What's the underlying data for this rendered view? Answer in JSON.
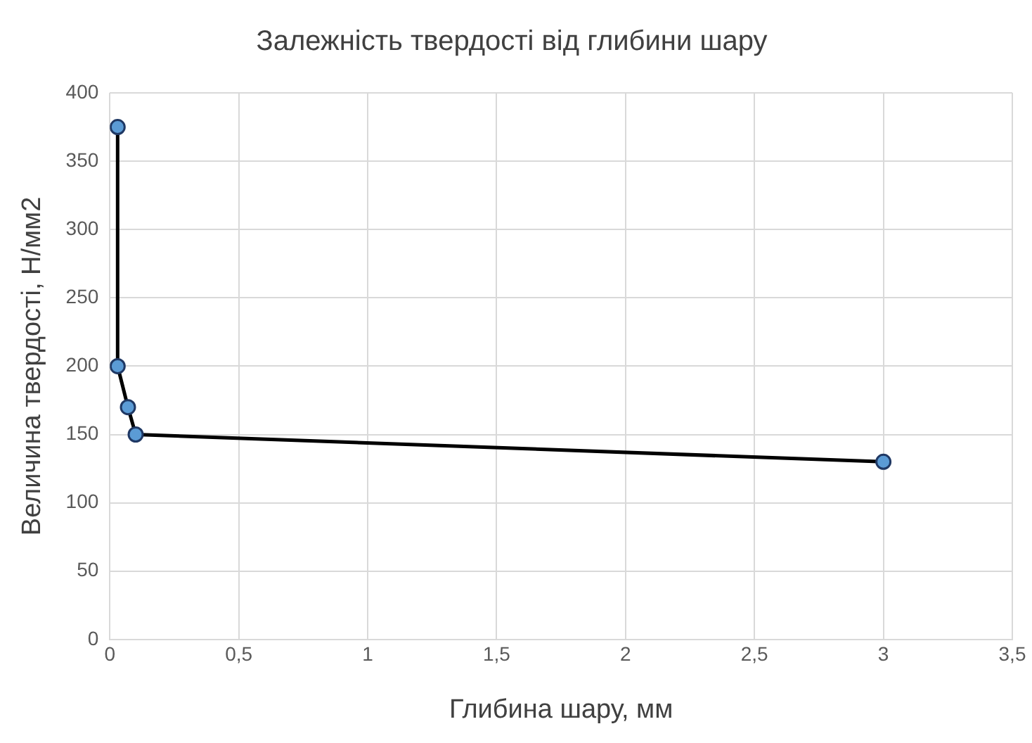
{
  "chart_data": {
    "type": "line",
    "title": "Залежність твердості від глибини шару",
    "xlabel": "Глибина шару, мм",
    "ylabel": "Величина твердості, Н/мм2",
    "x": [
      0.03,
      0.03,
      0.07,
      0.1,
      3
    ],
    "series": [
      {
        "color": "#000000",
        "values": [
          375,
          200,
          170,
          150,
          130
        ]
      }
    ],
    "xlim": [
      0,
      3.5
    ],
    "xticks": [
      0,
      {
        "value": 0.5,
        "label": "0,5"
      },
      1,
      {
        "value": 1.5,
        "label": "1,5"
      },
      2,
      {
        "value": 2.5,
        "label": "2,5"
      },
      3,
      {
        "value": 3.5,
        "label": "3,5"
      }
    ],
    "ylim": [
      0,
      400
    ],
    "yticks": [
      0,
      50,
      100,
      150,
      200,
      250,
      300,
      350,
      400
    ],
    "grid": true,
    "legend": false,
    "marker": "circle",
    "line_style": "solid"
  }
}
